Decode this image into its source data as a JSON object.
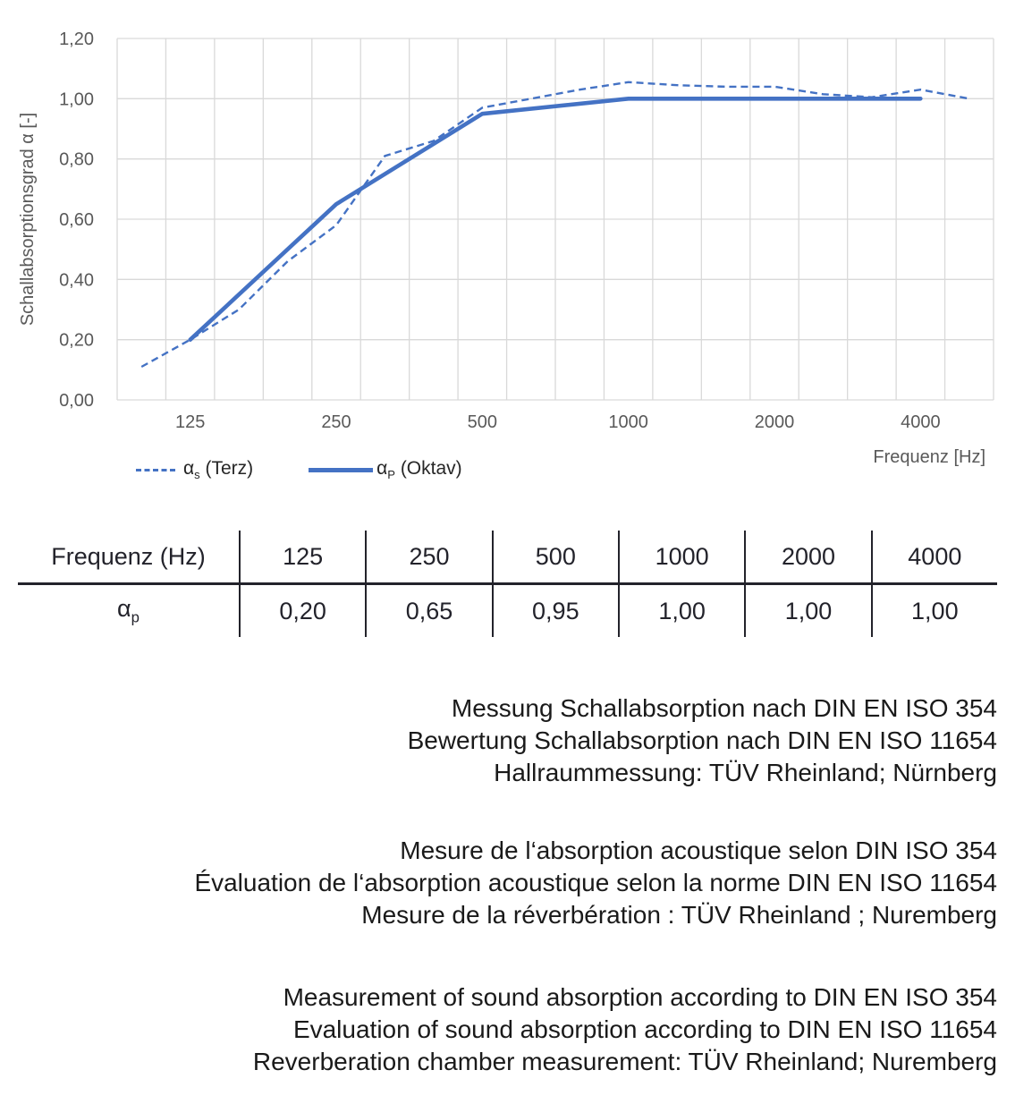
{
  "chart": {
    "y_axis_title": "Schallabsorptionsgrad α [-]",
    "x_axis_title": "Frequenz [Hz]",
    "y_ticks": [
      "0,00",
      "0,20",
      "0,40",
      "0,60",
      "0,80",
      "1,00",
      "1,20"
    ],
    "x_ticks": [
      "125",
      "250",
      "500",
      "1000",
      "2000",
      "4000"
    ],
    "colors": {
      "line_blue": "#4472C4",
      "grid": "#D9D9D9",
      "axis_text": "#595959"
    }
  },
  "chart_data": {
    "type": "line",
    "x_scale": "log (third-octave categories)",
    "x_categories": [
      100,
      125,
      160,
      200,
      250,
      315,
      400,
      500,
      630,
      800,
      1000,
      1250,
      1600,
      2000,
      2500,
      3150,
      4000,
      5000
    ],
    "series": [
      {
        "name": "αs (Terz)",
        "style": "dashed",
        "values": [
          0.11,
          0.2,
          0.3,
          0.46,
          0.58,
          0.81,
          0.86,
          0.97,
          1.0,
          1.03,
          1.055,
          1.045,
          1.04,
          1.04,
          1.015,
          1.005,
          1.03,
          1.0
        ]
      },
      {
        "name": "αP (Oktav)",
        "style": "solid",
        "x": [
          125,
          250,
          500,
          1000,
          2000,
          4000
        ],
        "values": [
          0.2,
          0.65,
          0.95,
          1.0,
          1.0,
          1.0
        ]
      }
    ],
    "title": "",
    "xlabel": "Frequenz [Hz]",
    "ylabel": "Schallabsorptionsgrad α [-]",
    "ylim": [
      0,
      1.2
    ],
    "y_tick_step": 0.2,
    "grid": true,
    "legend_position": "bottom-left"
  },
  "legend": {
    "items": [
      {
        "symbol": "α",
        "sub": "s",
        "label": " (Terz)",
        "style": "dashed"
      },
      {
        "symbol": "α",
        "sub": "P",
        "label": " (Oktav)",
        "style": "solid"
      }
    ]
  },
  "table": {
    "header": {
      "label": "Frequenz (Hz)",
      "cells": [
        "125",
        "250",
        "500",
        "1000",
        "2000",
        "4000"
      ]
    },
    "row": {
      "symbol": "α",
      "sub": "p",
      "cells": [
        "0,20",
        "0,65",
        "0,95",
        "1,00",
        "1,00",
        "1,00"
      ]
    }
  },
  "notes": {
    "de": [
      "Messung Schallabsorption nach DIN EN ISO 354",
      "Bewertung Schallabsorption nach DIN EN ISO 11654",
      "Hallraummessung: TÜV Rheinland; Nürnberg"
    ],
    "fr": [
      "Mesure de l‘absorption acoustique selon DIN ISO 354",
      "Évaluation de l‘absorption acoustique selon la norme DIN EN ISO 11654",
      "Mesure de la réverbération : TÜV Rheinland ; Nuremberg"
    ],
    "en": [
      "Measurement of sound absorption according to DIN EN ISO 354",
      "Evaluation of sound absorption according to DIN EN ISO 11654",
      "Reverberation chamber measurement: TÜV Rheinland; Nuremberg"
    ]
  }
}
